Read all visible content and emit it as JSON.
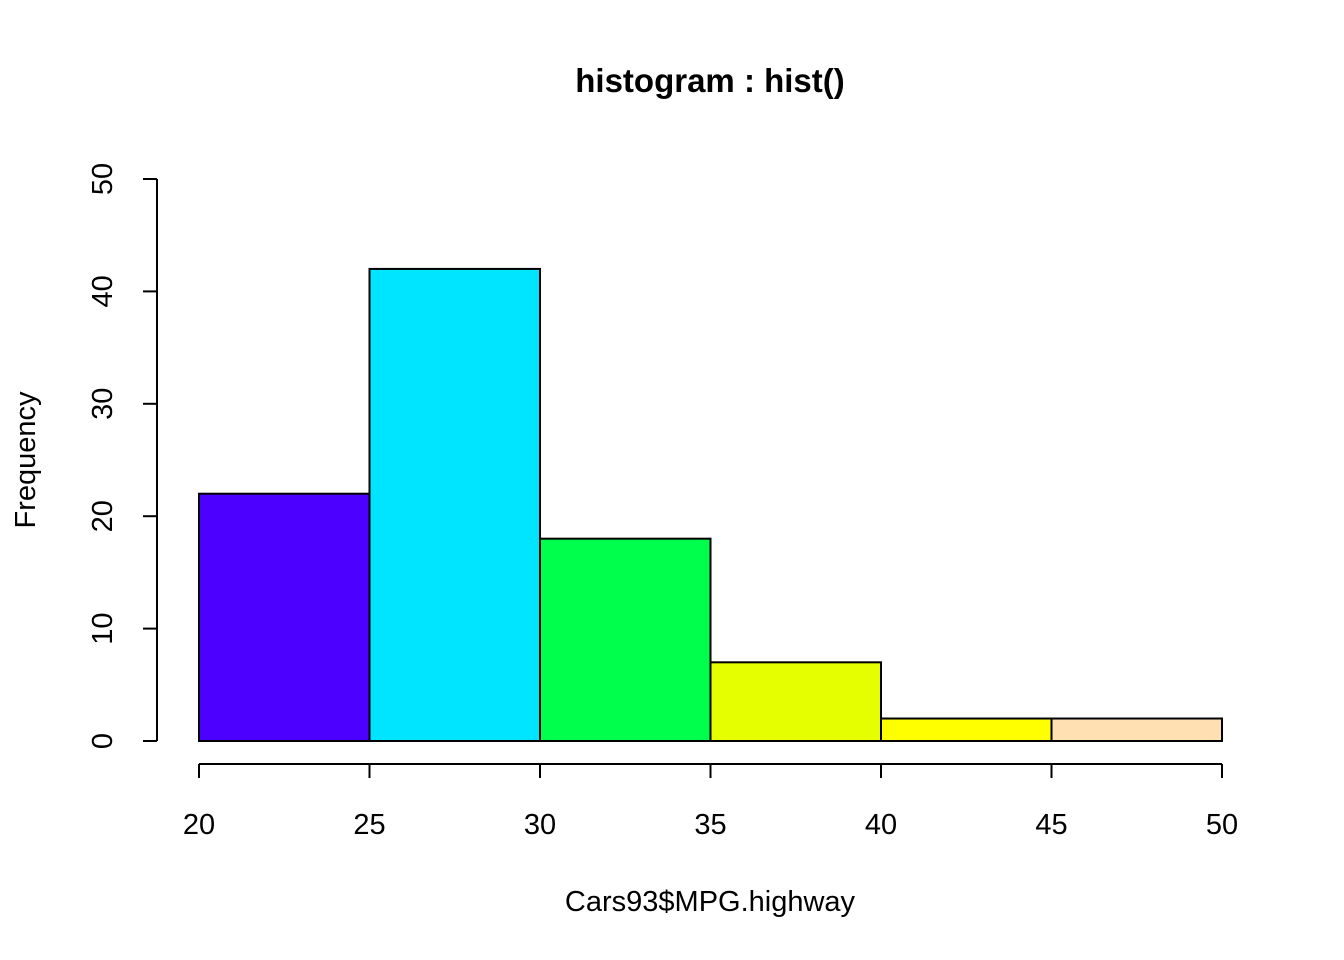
{
  "chart_data": {
    "type": "bar",
    "title": "histogram : hist()",
    "xlabel": "Cars93$MPG.highway",
    "ylabel": "Frequency",
    "bins": [
      {
        "start": 20,
        "end": 25,
        "count": 22,
        "color": "#4C00FF"
      },
      {
        "start": 25,
        "end": 30,
        "count": 42,
        "color": "#00E5FF"
      },
      {
        "start": 30,
        "end": 35,
        "count": 18,
        "color": "#00FF4D"
      },
      {
        "start": 35,
        "end": 40,
        "count": 7,
        "color": "#E6FF00"
      },
      {
        "start": 40,
        "end": 45,
        "count": 2,
        "color": "#FFFF00"
      },
      {
        "start": 45,
        "end": 50,
        "count": 2,
        "color": "#FFE0B3"
      }
    ],
    "xlim": [
      20,
      50
    ],
    "ylim": [
      0,
      50
    ],
    "xticks": [
      20,
      25,
      30,
      35,
      40,
      45,
      50
    ],
    "yticks": [
      0,
      10,
      20,
      30,
      40,
      50
    ],
    "grid": false,
    "legend": "none"
  }
}
